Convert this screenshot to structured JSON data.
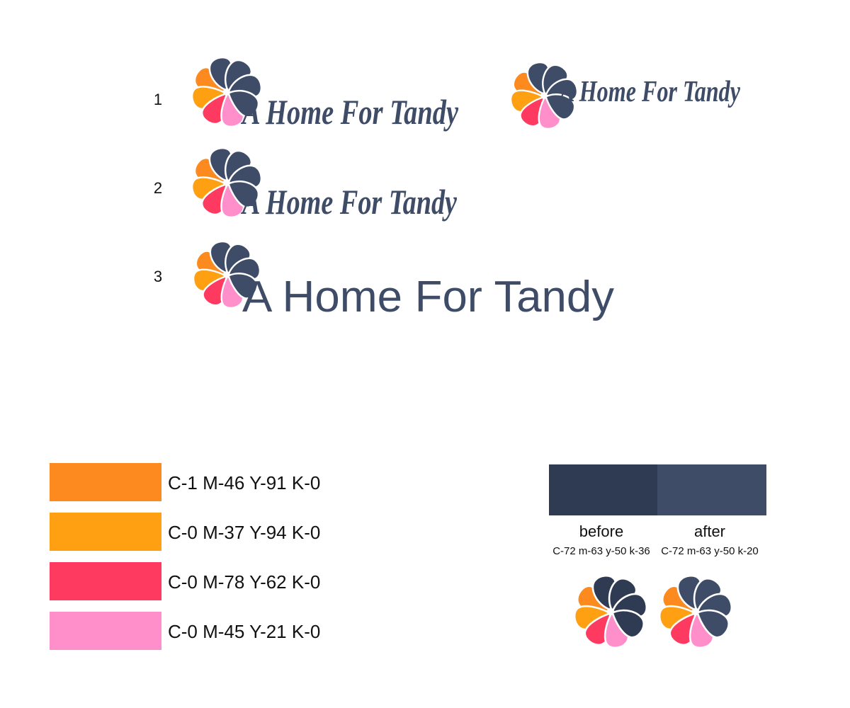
{
  "options": [
    {
      "number": "1",
      "wordmark": "A Home For Tandy"
    },
    {
      "number": "2",
      "wordmark": "A Home For Tandy"
    },
    {
      "number": "3",
      "wordmark": "A Home For Tandy"
    }
  ],
  "alt_logo": {
    "wordmark": "A Home For Tandy"
  },
  "swatches": [
    {
      "color": "#fd8a1e",
      "label": "C-1 M-46 Y-91 K-0"
    },
    {
      "color": "#fea012",
      "label": "C-0 M-37 Y-94 K-0"
    },
    {
      "color": "#fe3a61",
      "label": "C-0 M-78 Y-62 K-0"
    },
    {
      "color": "#fe8fcb",
      "label": "C-0 M-45 Y-21 K-0"
    }
  ],
  "comparison": [
    {
      "label": "before",
      "code": "C-72 m-63 y-50 k-36",
      "color": "#2f3b52"
    },
    {
      "label": "after",
      "code": "C-72 m-63 y-50 k-20",
      "color": "#3e4c68"
    }
  ]
}
